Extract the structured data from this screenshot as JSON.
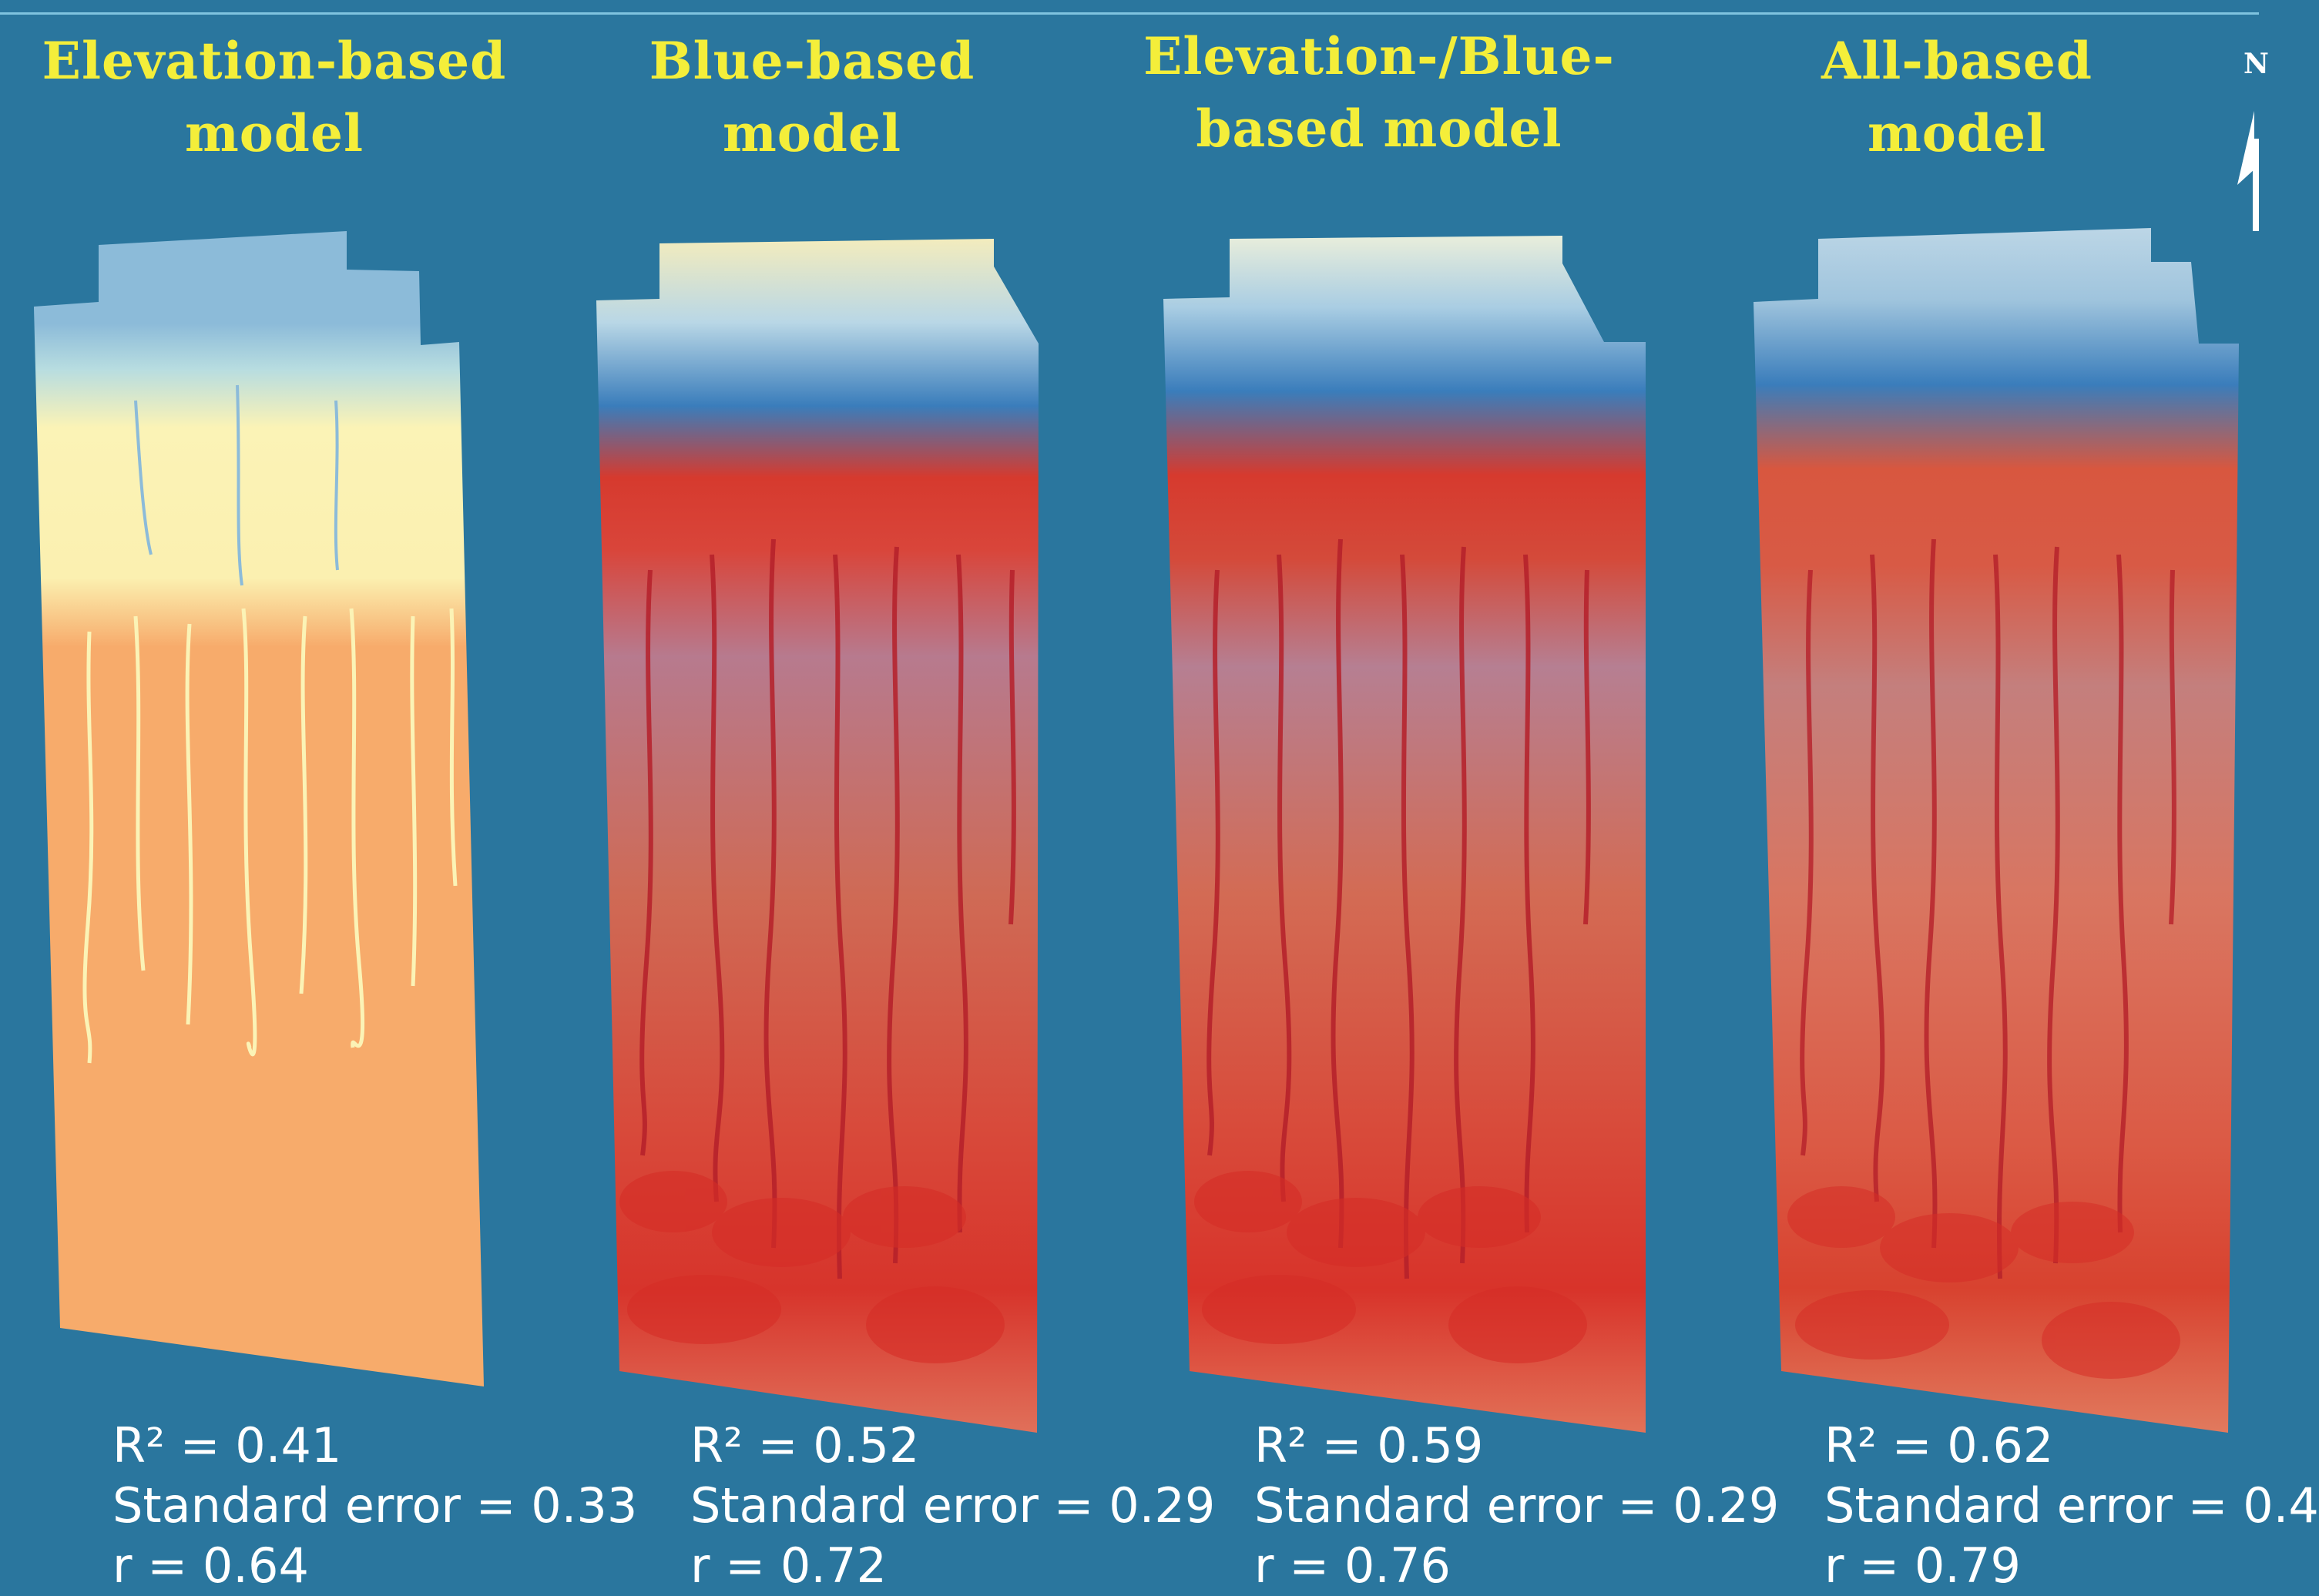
{
  "colors": {
    "background": "#2a769e",
    "title": "#f4ee3a",
    "stats_text": "#ffffff",
    "low_blue": "#3a7dbb",
    "light_blue": "#8fbad8",
    "pale_yellow": "#fbf3b6",
    "orange": "#f7ab6b",
    "red": "#d8312a"
  },
  "panels": [
    {
      "title_line1": "Elevation-based",
      "title_line2": "model",
      "r2": "R² = 0.41",
      "standard_error": "Standard error = 0.33",
      "r": "r = 0.64"
    },
    {
      "title_line1": "Blue-based",
      "title_line2": "model",
      "r2": "R² = 0.52",
      "standard_error": "Standard error = 0.29",
      "r": "r = 0.72"
    },
    {
      "title_line1": "Elevation-/Blue-",
      "title_line2": "based model",
      "r2": "R² = 0.59",
      "standard_error": "Standard error = 0.29",
      "r": "r = 0.76"
    },
    {
      "title_line1": "All-based",
      "title_line2": "model",
      "r2": "R² = 0.62",
      "standard_error": "Standard error = 0.4",
      "r": "r = 0.79"
    }
  ],
  "north_arrow": {
    "letter": "N",
    "icon": "north-arrow-icon"
  }
}
